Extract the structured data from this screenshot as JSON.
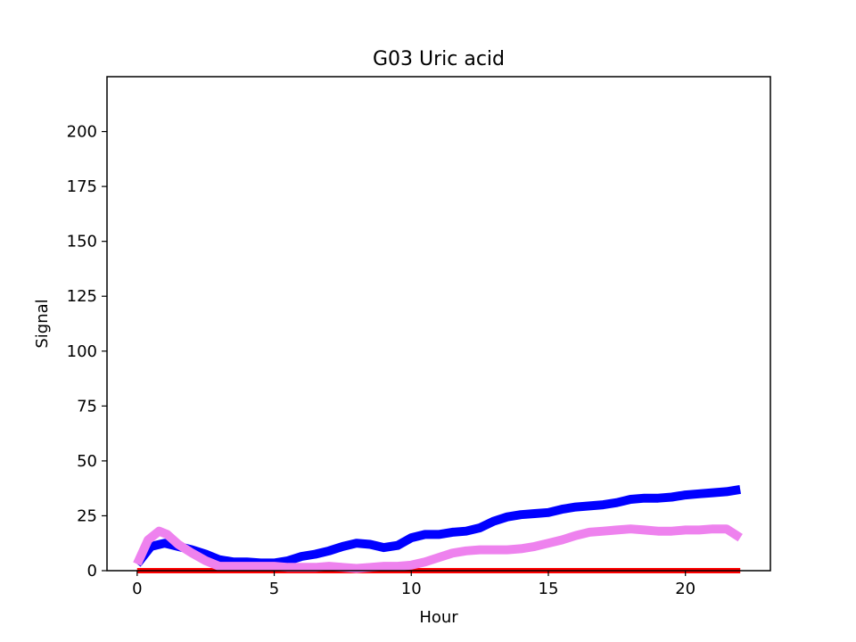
{
  "chart_data": {
    "type": "line",
    "title": "G03 Uric acid",
    "xlabel": "Hour",
    "ylabel": "Signal",
    "xlim": [
      -1.1,
      23.1
    ],
    "ylim": [
      0,
      225
    ],
    "xticks": [
      0,
      5,
      10,
      15,
      20
    ],
    "yticks": [
      0,
      25,
      50,
      75,
      100,
      125,
      150,
      175,
      200
    ],
    "grid": false,
    "legend": "none",
    "series": [
      {
        "name": "blue",
        "color": "#0000ff",
        "x": [
          0,
          0.5,
          1,
          1.5,
          2,
          2.5,
          3,
          3.5,
          4,
          4.5,
          5,
          5.5,
          6,
          6.5,
          7,
          7.5,
          8,
          8.5,
          9,
          9.5,
          10,
          10.5,
          11,
          11.5,
          12,
          12.5,
          13,
          13.5,
          14,
          14.5,
          15,
          15.5,
          16,
          16.5,
          17,
          17.5,
          18,
          18.5,
          19,
          19.5,
          20,
          20.5,
          21,
          21.5,
          22
        ],
        "y": [
          3,
          11,
          12.5,
          11,
          9.5,
          7.5,
          5,
          4,
          4,
          3.5,
          3.5,
          4.5,
          6.5,
          7.5,
          9,
          11,
          12.5,
          12,
          10.5,
          11.5,
          15,
          16.5,
          16.5,
          17.5,
          18,
          19.5,
          22.5,
          24.5,
          25.5,
          26,
          26.5,
          28,
          29,
          29.5,
          30,
          31,
          32.5,
          33,
          33,
          33.5,
          34.5,
          35,
          35.5,
          36,
          37
        ]
      },
      {
        "name": "violet",
        "color": "#ee82ee",
        "x": [
          0,
          0.4,
          0.8,
          1.1,
          1.5,
          2,
          2.5,
          3,
          3.5,
          4,
          4.5,
          5,
          5.5,
          6,
          6.5,
          7,
          7.5,
          8,
          8.5,
          9,
          9.5,
          10,
          10.5,
          11,
          11.5,
          12,
          12.5,
          13,
          13.5,
          14,
          14.5,
          15,
          15.5,
          16,
          16.5,
          17,
          17.5,
          18,
          18.5,
          19,
          19.5,
          20,
          20.5,
          21,
          21.5,
          22
        ],
        "y": [
          3,
          14,
          18,
          16.5,
          12,
          8,
          4.5,
          2,
          2,
          2,
          2,
          2,
          1.5,
          1.5,
          1.5,
          2,
          1.5,
          1,
          1.5,
          2,
          2,
          2.5,
          4,
          6,
          8,
          9,
          9.5,
          9.5,
          9.5,
          10,
          11,
          12.5,
          14,
          16,
          17.5,
          18,
          18.5,
          19,
          18.5,
          18,
          18,
          18.5,
          18.5,
          19,
          19,
          15
        ]
      },
      {
        "name": "red",
        "color": "#ff0000",
        "x": [
          0,
          22
        ],
        "y": [
          0,
          0
        ]
      }
    ]
  }
}
